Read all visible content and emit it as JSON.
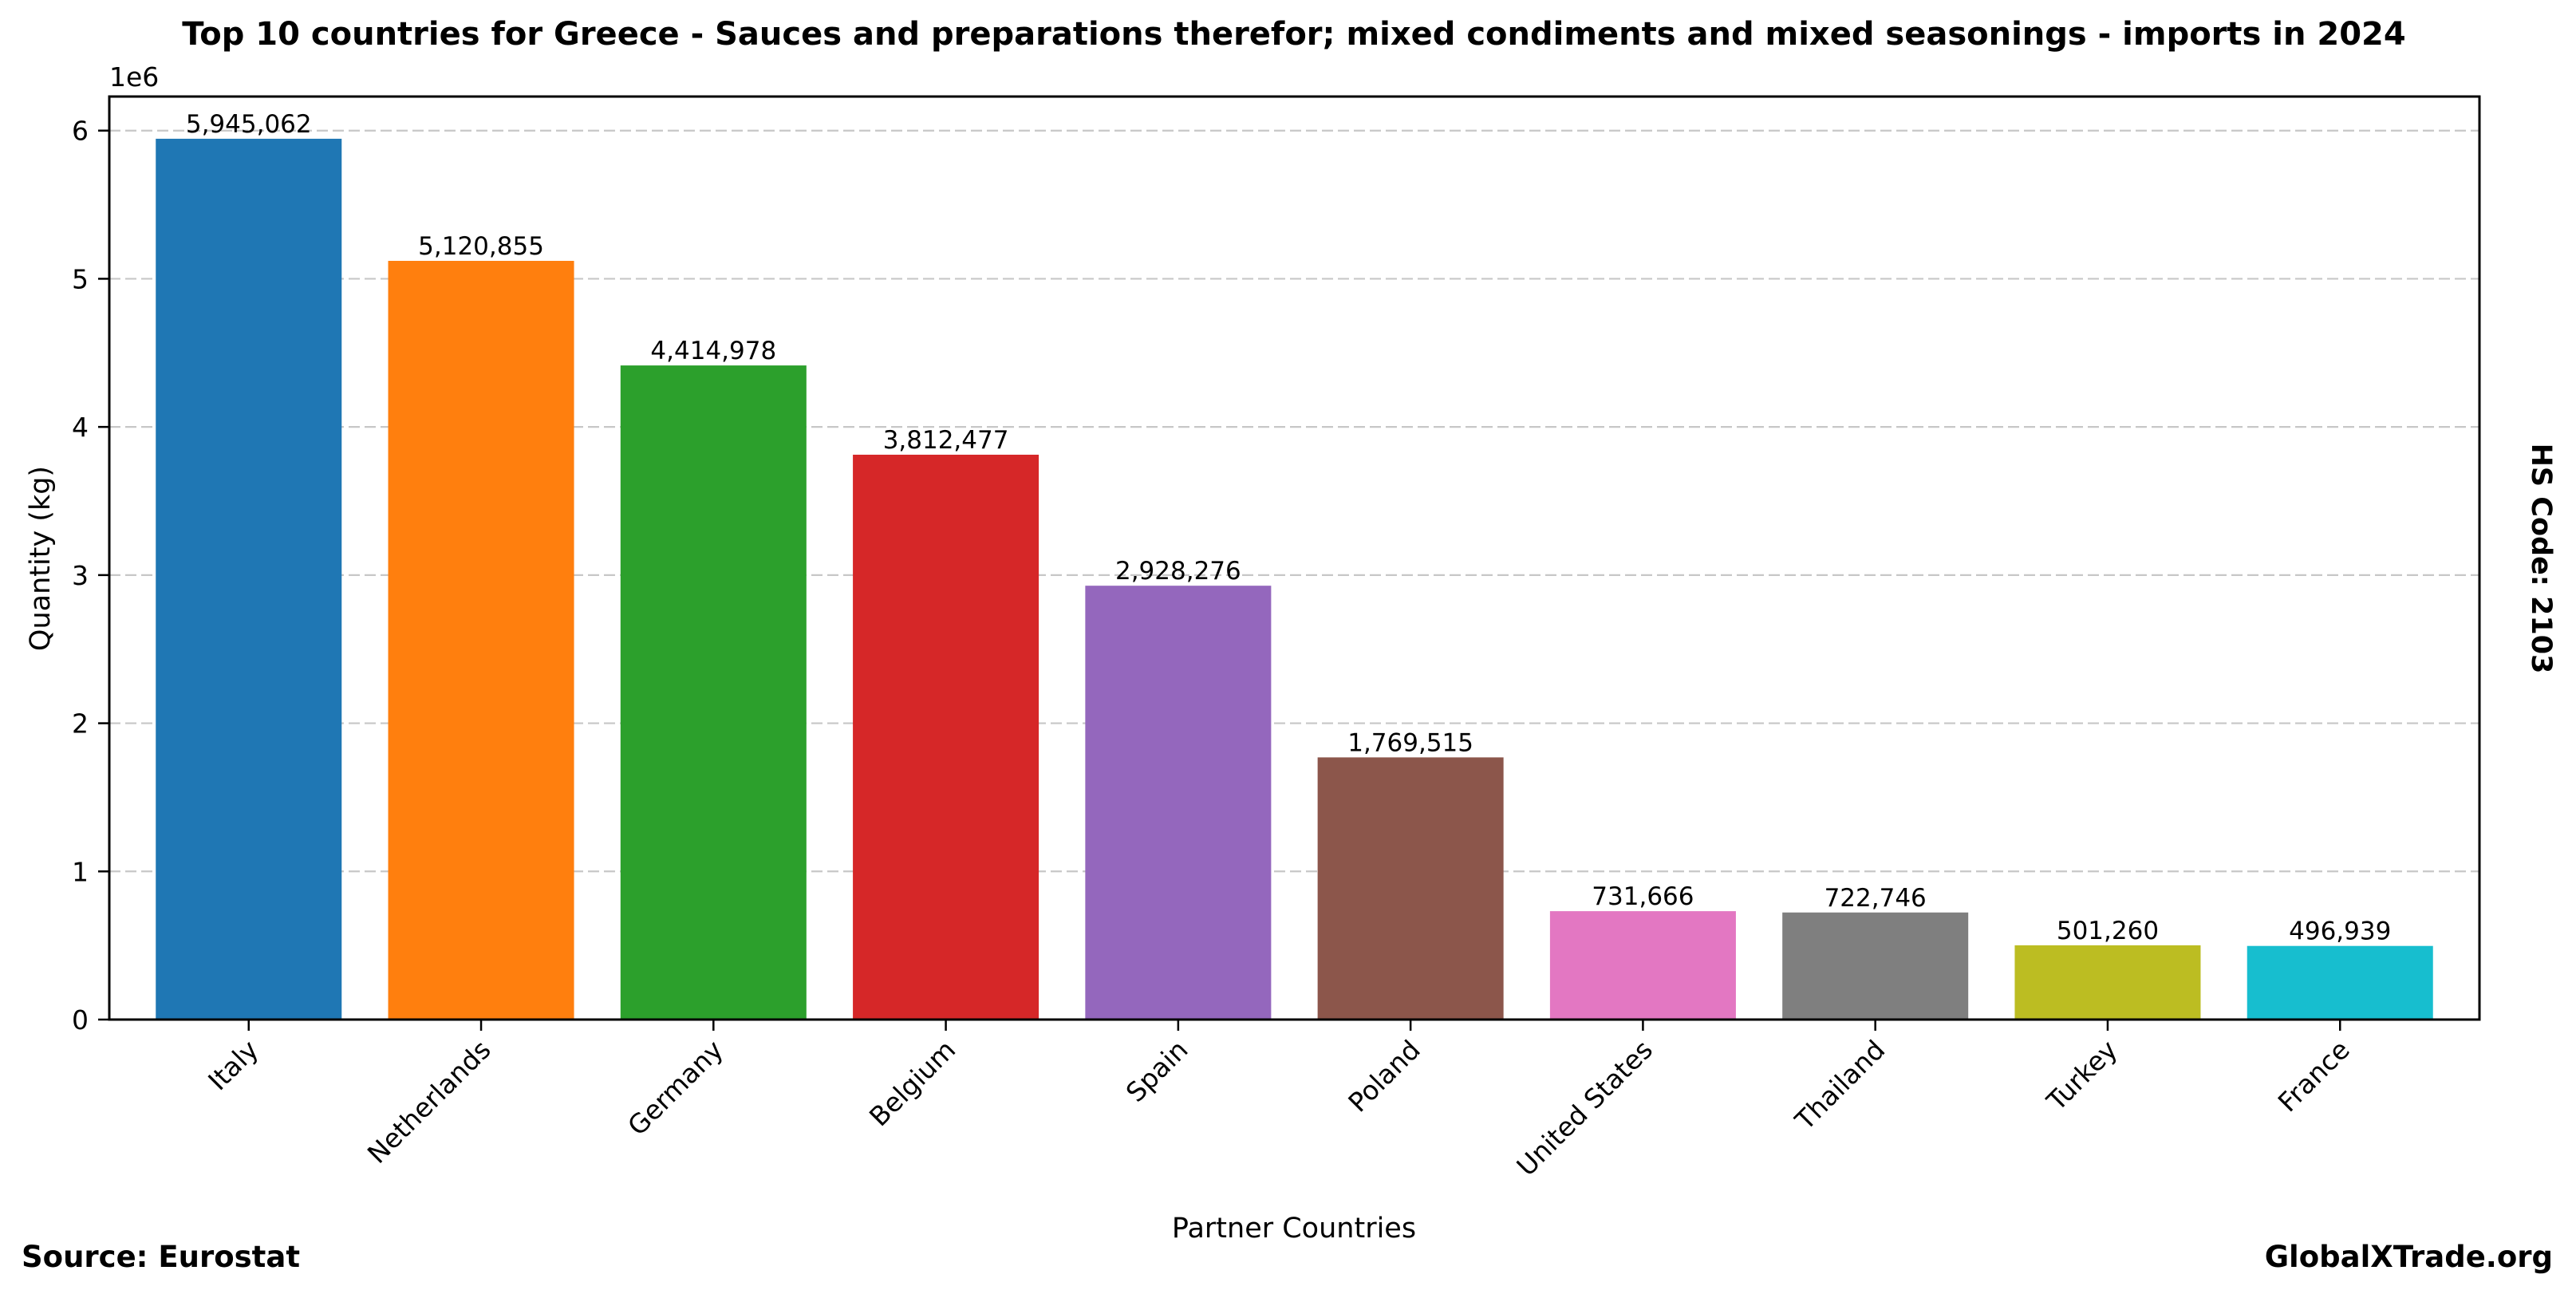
{
  "chart_data": {
    "type": "bar",
    "title": "Top 10 countries for Greece - Sauces and preparations therefor; mixed condiments and mixed seasonings - imports in 2024",
    "xlabel": "Partner Countries",
    "ylabel": "Quantity (kg)",
    "y_offset_label": "1e6",
    "ylim": [
      0,
      6230000
    ],
    "yticks": [
      0,
      1,
      2,
      3,
      4,
      5,
      6
    ],
    "ytick_scale": 1000000,
    "grid": "y-dashed",
    "categories": [
      "Italy",
      "Netherlands",
      "Germany",
      "Belgium",
      "Spain",
      "Poland",
      "United States",
      "Thailand",
      "Turkey",
      "France"
    ],
    "values": [
      5945062,
      5120855,
      4414978,
      3812477,
      2928276,
      1769515,
      731666,
      722746,
      501260,
      496939
    ],
    "value_labels": [
      "5,945,062",
      "5,120,855",
      "4,414,978",
      "3,812,477",
      "2,928,276",
      "1,769,515",
      "731,666",
      "722,746",
      "501,260",
      "496,939"
    ],
    "colors": [
      "#1f77b4",
      "#ff7f0e",
      "#2ca02c",
      "#d62728",
      "#9467bd",
      "#8c564b",
      "#e377c2",
      "#7f7f7f",
      "#bcbd22",
      "#17becf"
    ]
  },
  "annotations": {
    "side_label": "HS Code: 2103",
    "source": "Source: Eurostat",
    "brand": "GlobalXTrade.org"
  }
}
